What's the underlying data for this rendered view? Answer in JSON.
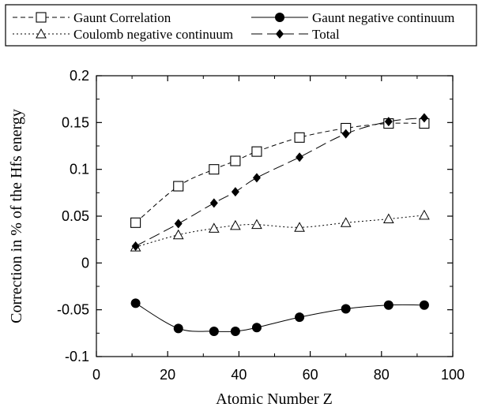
{
  "chart_data": {
    "type": "line",
    "xlabel": "Atomic Number Z",
    "ylabel": "Correction in % of the Hfs energy",
    "xlim": [
      0,
      100
    ],
    "ylim": [
      -0.1,
      0.2
    ],
    "xticks": [
      "0",
      "20",
      "40",
      "60",
      "80",
      "100"
    ],
    "yticks": [
      "0.2",
      "0.15",
      "0.1",
      "0.05",
      "0",
      "-0.05",
      "-0.1"
    ],
    "grid": false,
    "legend_placement": "top, outside plot",
    "series": [
      {
        "name": "Gaunt Correlation",
        "marker": "open-square",
        "line": "dashed",
        "x": [
          11,
          23,
          33,
          39,
          45,
          57,
          70,
          82,
          92
        ],
        "y": [
          0.043,
          0.082,
          0.1,
          0.109,
          0.119,
          0.134,
          0.144,
          0.149,
          0.149
        ]
      },
      {
        "name": "Gaunt negative continuum",
        "marker": "filled-circle",
        "line": "solid",
        "x": [
          11,
          23,
          33,
          39,
          45,
          57,
          70,
          82,
          92
        ],
        "y": [
          -0.043,
          -0.07,
          -0.073,
          -0.073,
          -0.069,
          -0.058,
          -0.049,
          -0.045,
          -0.045
        ]
      },
      {
        "name": "Coulomb negative continuum",
        "marker": "open-triangle",
        "line": "dotted",
        "x": [
          11,
          23,
          33,
          39,
          45,
          57,
          70,
          82,
          92
        ],
        "y": [
          0.017,
          0.03,
          0.037,
          0.04,
          0.041,
          0.038,
          0.043,
          0.047,
          0.051
        ]
      },
      {
        "name": "Total",
        "marker": "filled-diamond",
        "line": "long-dash",
        "x": [
          11,
          23,
          33,
          39,
          45,
          57,
          70,
          82,
          92
        ],
        "y": [
          0.018,
          0.042,
          0.064,
          0.076,
          0.091,
          0.113,
          0.138,
          0.151,
          0.155
        ]
      }
    ]
  }
}
